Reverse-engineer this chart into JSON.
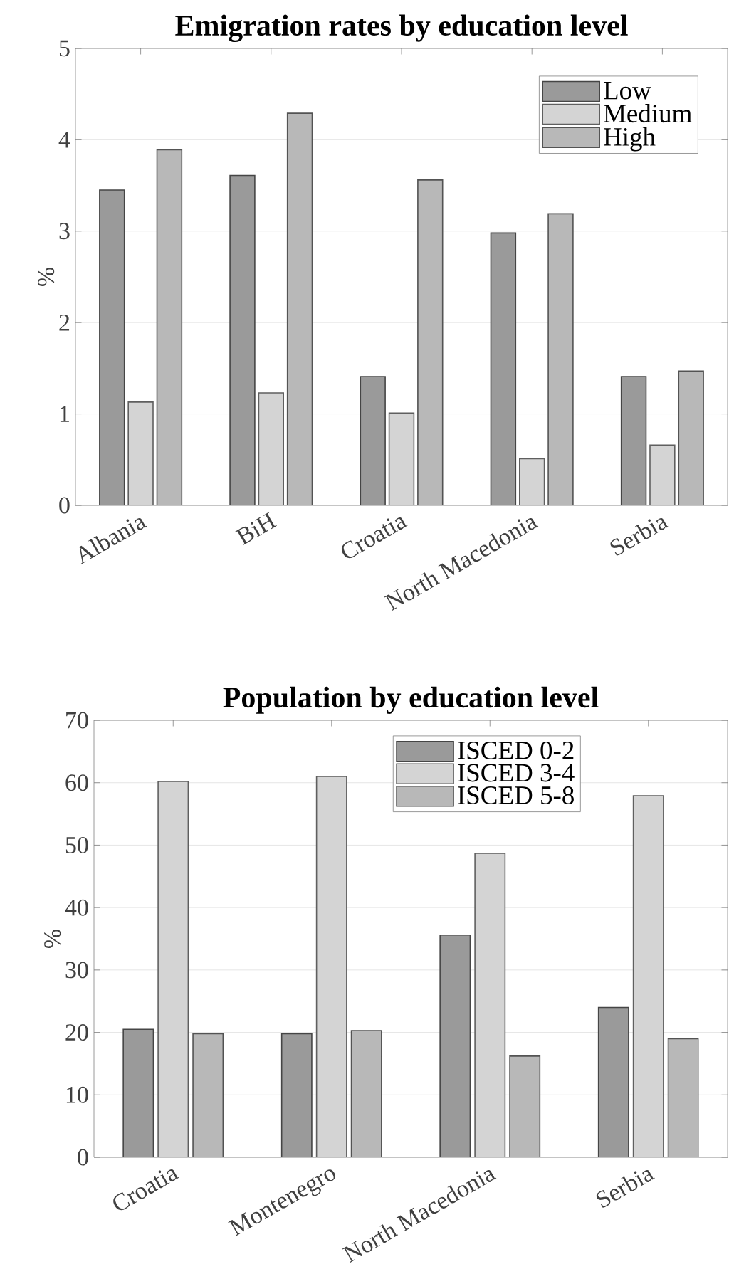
{
  "chart_data": [
    {
      "type": "bar",
      "title": "Emigration rates by education level",
      "ylabel": "%",
      "categories": [
        "Albania",
        "BiH",
        "Croatia",
        "North Macedonia",
        "Serbia"
      ],
      "series": [
        {
          "name": "Low",
          "color": "#9a9a9a",
          "values": [
            3.45,
            3.61,
            1.41,
            2.98,
            1.41
          ]
        },
        {
          "name": "Medium",
          "color": "#d4d4d4",
          "values": [
            1.13,
            1.23,
            1.01,
            0.51,
            0.66
          ]
        },
        {
          "name": "High",
          "color": "#b8b8b8",
          "values": [
            3.89,
            4.29,
            3.56,
            3.19,
            1.47
          ]
        }
      ],
      "ylim": [
        0,
        5
      ],
      "yticks": [
        0,
        1,
        2,
        3,
        4,
        5
      ],
      "grid": "y",
      "legend": "top right"
    },
    {
      "type": "bar",
      "title": "Population by education level",
      "ylabel": "%",
      "categories": [
        "Croatia",
        "Montenegro",
        "North Macedonia",
        "Serbia"
      ],
      "series": [
        {
          "name": "ISCED 0-2",
          "color": "#9a9a9a",
          "values": [
            20.5,
            19.8,
            35.6,
            24.0
          ]
        },
        {
          "name": "ISCED 3-4",
          "color": "#d4d4d4",
          "values": [
            60.2,
            61.0,
            48.7,
            57.9
          ]
        },
        {
          "name": "ISCED 5-8",
          "color": "#b8b8b8",
          "values": [
            19.8,
            20.3,
            16.2,
            19.0
          ]
        }
      ],
      "ylim": [
        0,
        70
      ],
      "yticks": [
        0,
        10,
        20,
        30,
        40,
        50,
        60,
        70
      ],
      "grid": "y",
      "legend": "top"
    }
  ]
}
